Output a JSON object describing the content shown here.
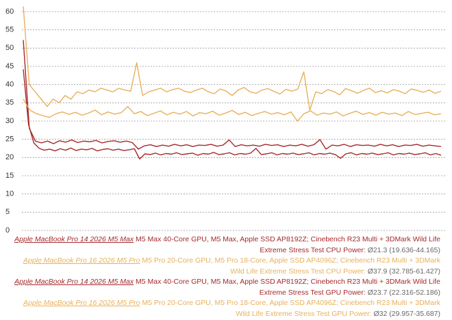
{
  "chart_data": {
    "type": "line",
    "ylim": [
      0,
      60
    ],
    "yticks": [
      0,
      5,
      10,
      15,
      20,
      25,
      30,
      35,
      40,
      45,
      50,
      55,
      60
    ],
    "grid": true,
    "series": [
      {
        "name": "Apple MacBook Pro 14 2026 M5 Max",
        "color": "#a5282a",
        "description": "M5 Max 40-Core GPU, M5 Max, Apple SSD AP8192Z; Cinebench R23 Multi + 3DMark Wild Life Extreme Stress Test CPU Power:",
        "stats": "Ø21.3 (19.636-44.165)",
        "values": [
          44.2,
          29,
          24,
          22.5,
          22,
          22.3,
          21.8,
          22.4,
          22,
          22.6,
          21.9,
          22.3,
          22.1,
          22.5,
          21.8,
          22.2,
          22.4,
          22.0,
          22.3,
          21.9,
          22.1,
          22.4,
          19.6,
          21.0,
          20.8,
          21.2,
          20.7,
          21.1,
          20.9,
          21.3,
          20.8,
          21.0,
          21.2,
          20.6,
          21.1,
          20.9,
          21.4,
          20.8,
          21.0,
          21.3,
          20.7,
          21.1,
          20.9,
          21.2,
          22.5,
          20.8,
          21.0,
          21.3,
          20.7,
          21.1,
          20.9,
          21.2,
          20.8,
          21.0,
          21.3,
          20.7,
          21.1,
          20.9,
          21.2,
          20.8,
          19.8,
          21.0,
          21.3,
          20.7,
          21.1,
          20.9,
          21.2,
          20.8,
          21.0,
          21.3,
          20.7,
          21.1,
          20.9,
          21.2,
          20.8,
          21.0,
          21.3,
          20.7,
          21.1,
          20.6
        ]
      },
      {
        "name": "Apple MacBook Pro 16 2026 M5 Pro",
        "color": "#e8b05a",
        "description": "M5 Pro 20-Core GPU, M5 Pro 18-Core, Apple SSD AP4096Z; Cinebench R23 Multi + 3DMark Wild Life Extreme Stress Test CPU Power:",
        "stats": "Ø37.9 (32.785-61.427)",
        "values": [
          61.4,
          40,
          38,
          36,
          34,
          36,
          35,
          37,
          36,
          38,
          37.5,
          38.5,
          38,
          39,
          38.5,
          38,
          39,
          38.5,
          38.2,
          46,
          37,
          38,
          38.5,
          39,
          38,
          38.6,
          39,
          38.2,
          37.8,
          38.5,
          39,
          38,
          37.5,
          38.8,
          38.2,
          37,
          38.5,
          39.2,
          38,
          37.6,
          38.5,
          38.9,
          38.1,
          37.4,
          38.7,
          38.2,
          38.8,
          43.5,
          33,
          38,
          37.5,
          38.6,
          38.1,
          37.2,
          38.9,
          38.3,
          37.6,
          38.4,
          39,
          37.8,
          38.3,
          37.7,
          38.6,
          38.2,
          37.5,
          38.8,
          38.4,
          37.9,
          38.5,
          37.6,
          38.2
        ]
      },
      {
        "name": "Apple MacBook Pro 14 2026 M5 Max",
        "color": "#a5282a",
        "description": "M5 Max 40-Core GPU, M5 Max, Apple SSD AP8192Z; Cinebench R23 Multi + 3DMark Wild Life Extreme Stress Test GPU Power:",
        "stats": "Ø23.7 (22.316-52.186)",
        "values": [
          52.2,
          28,
          24.5,
          24,
          24.5,
          23.8,
          24.6,
          24.2,
          24.8,
          24.1,
          24.5,
          24.3,
          24.7,
          24.0,
          24.4,
          24.6,
          24.2,
          24.5,
          24.1,
          22.3,
          23.2,
          23.5,
          23.0,
          23.4,
          23.1,
          23.6,
          23.2,
          23.5,
          23.0,
          23.4,
          23.3,
          23.6,
          23.1,
          23.4,
          24.8,
          23.0,
          23.5,
          23.2,
          23.4,
          23.1,
          23.6,
          23.3,
          23.5,
          23.0,
          23.4,
          23.2,
          23.6,
          23.1,
          23.5,
          24.9,
          22.3,
          23.4,
          23.2,
          23.6,
          23.0,
          23.5,
          23.3,
          23.4,
          23.1,
          23.6,
          23.2,
          23.5,
          23.0,
          23.4,
          23.3,
          23.6,
          23.1,
          23.4,
          23.2,
          23.0
        ]
      },
      {
        "name": "Apple MacBook Pro 16 2026 M5 Pro",
        "color": "#e8b05a",
        "description": "M5 Pro 20-Core GPU, M5 Pro 18-Core, Apple SSD AP4096Z; Cinebench R23 Multi + 3DMark Wild Life Extreme Stress Test GPU Power:",
        "stats": "Ø32 (29.957-35.687)",
        "values": [
          36,
          33,
          32,
          31.5,
          31,
          32,
          32.5,
          31.8,
          32.4,
          31.6,
          32.2,
          33,
          31.7,
          32.5,
          31.9,
          32.3,
          34,
          32,
          32.6,
          31.5,
          32.1,
          32.8,
          31.7,
          32.4,
          31.9,
          32.6,
          31.4,
          32.3,
          32.0,
          32.7,
          31.6,
          32.2,
          32.9,
          31.8,
          32.4,
          31.5,
          32.1,
          32.6,
          31.9,
          32.3,
          31.7,
          32.5,
          30,
          32.0,
          32.8,
          31.6,
          32.2,
          31.9,
          32.5,
          31.4,
          32.1,
          32.7,
          31.8,
          32.3,
          31.6,
          32.4,
          31.9,
          32.2,
          31.5,
          32.6,
          31.8,
          32.1,
          32.4,
          31.7,
          32.0
        ]
      }
    ]
  }
}
